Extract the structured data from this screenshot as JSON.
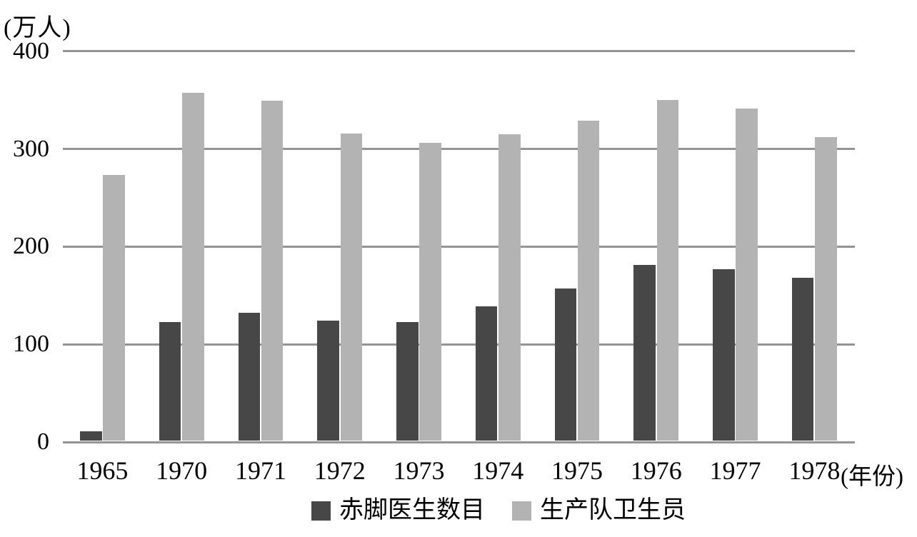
{
  "chart_data": {
    "type": "bar",
    "title": "",
    "unit_label": "(万人)",
    "x_axis_suffix": "(年份)",
    "categories": [
      "1965",
      "1970",
      "1971",
      "1972",
      "1973",
      "1974",
      "1975",
      "1976",
      "1977",
      "1978"
    ],
    "series": [
      {
        "id": "barefoot-doctors",
        "name": "赤脚医生数目",
        "color": "#474747",
        "values": [
          10,
          122,
          131,
          123,
          122,
          138,
          156,
          180,
          176,
          167
        ]
      },
      {
        "id": "production-team-health-workers",
        "name": "生产队卫生员",
        "color": "#b3b3b3",
        "values": [
          272,
          356,
          348,
          315,
          305,
          314,
          328,
          349,
          340,
          311
        ]
      }
    ],
    "y_ticks": [
      0,
      100,
      200,
      300,
      400
    ],
    "ylim": [
      0,
      400
    ],
    "grid": true,
    "legend_position": "bottom"
  },
  "colors": {
    "gridline": "#949494",
    "bar_dark": "#474747",
    "bar_light": "#b3b3b3",
    "text": "#000000",
    "background": "#ffffff"
  }
}
